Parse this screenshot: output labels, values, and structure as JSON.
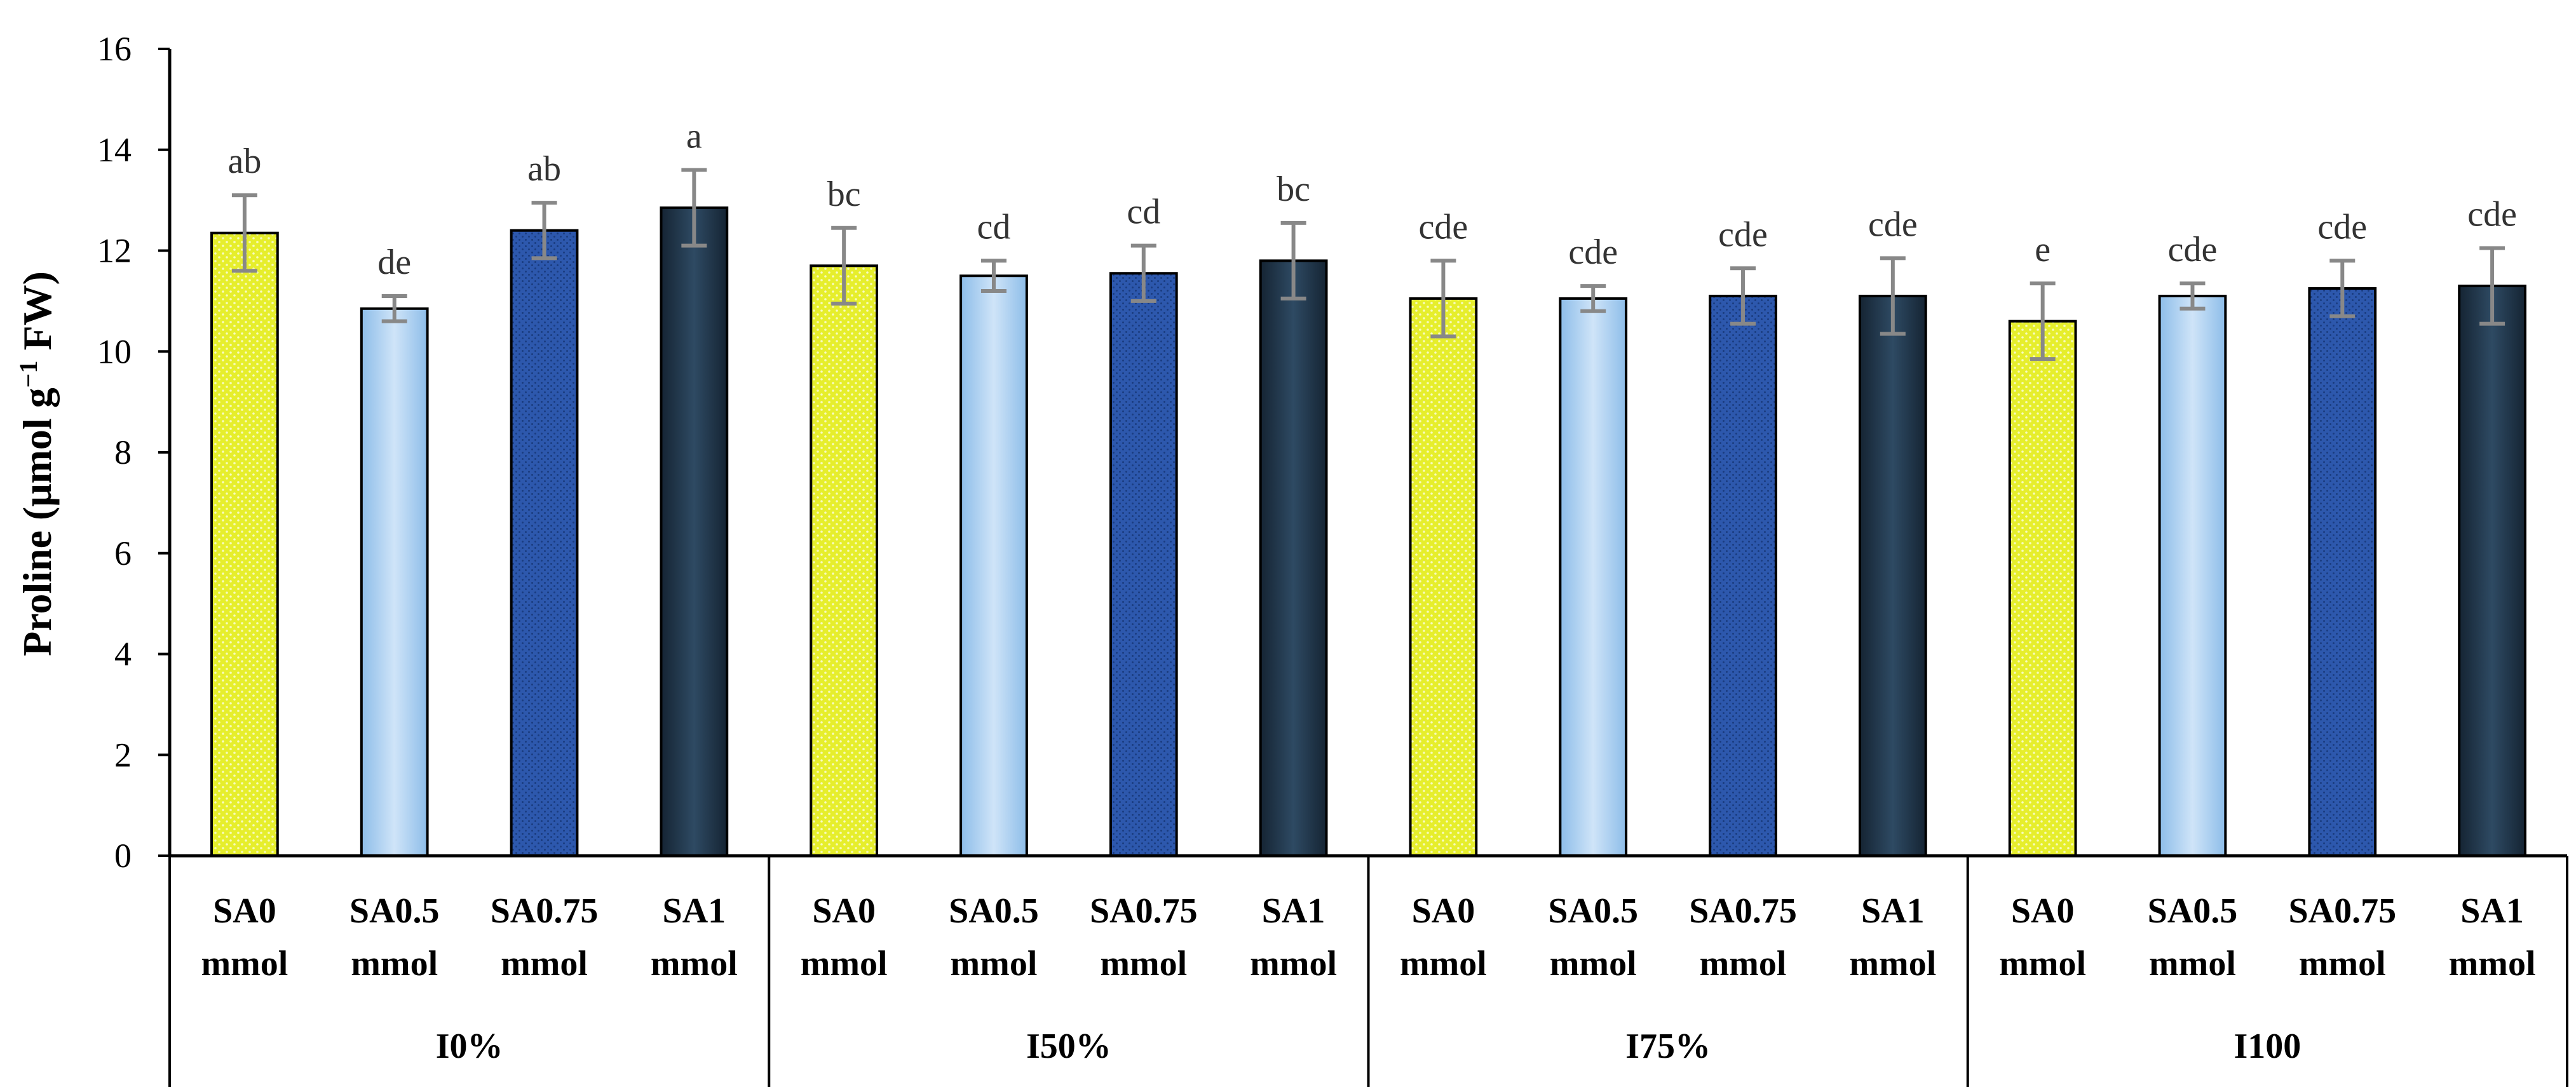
{
  "chart_data": {
    "type": "bar",
    "title": "",
    "xlabel": "",
    "ylabel": "Proline (μmol g⁻¹ FW)",
    "ylabel_parts": {
      "main": "Proline (μmol g",
      "sup": "−1",
      "tail": " FW)"
    },
    "ylim": [
      0,
      16
    ],
    "yticks": [
      0,
      2,
      4,
      6,
      8,
      10,
      12,
      14,
      16
    ],
    "grid": false,
    "sub_categories": [
      {
        "line1": "SA0",
        "line2": "mmol"
      },
      {
        "line1": "SA0.5",
        "line2": "mmol"
      },
      {
        "line1": "SA0.75",
        "line2": "mmol"
      },
      {
        "line1": "SA1",
        "line2": "mmol"
      }
    ],
    "groups": [
      {
        "name": "I0%",
        "values": [
          12.35,
          10.85,
          12.4,
          12.85
        ],
        "errors": [
          0.75,
          0.25,
          0.55,
          0.75
        ],
        "letters": [
          "ab",
          "de",
          "ab",
          "a"
        ]
      },
      {
        "name": "I50%",
        "values": [
          11.7,
          11.5,
          11.55,
          11.8
        ],
        "errors": [
          0.75,
          0.3,
          0.55,
          0.75
        ],
        "letters": [
          "bc",
          "cd",
          "cd",
          "bc"
        ]
      },
      {
        "name": "I75%",
        "values": [
          11.05,
          11.05,
          11.1,
          11.1
        ],
        "errors": [
          0.75,
          0.25,
          0.55,
          0.75
        ],
        "letters": [
          "cde",
          "cde",
          "cde",
          "cde"
        ]
      },
      {
        "name": "I100",
        "values": [
          10.6,
          11.1,
          11.25,
          11.3
        ],
        "errors": [
          0.75,
          0.25,
          0.55,
          0.75
        ],
        "letters": [
          "e",
          "cde",
          "cde",
          "cde"
        ]
      }
    ],
    "series_colors": [
      "#e3ec2a",
      "#a9cdf2",
      "#2b54a6",
      "#1f3346"
    ]
  }
}
